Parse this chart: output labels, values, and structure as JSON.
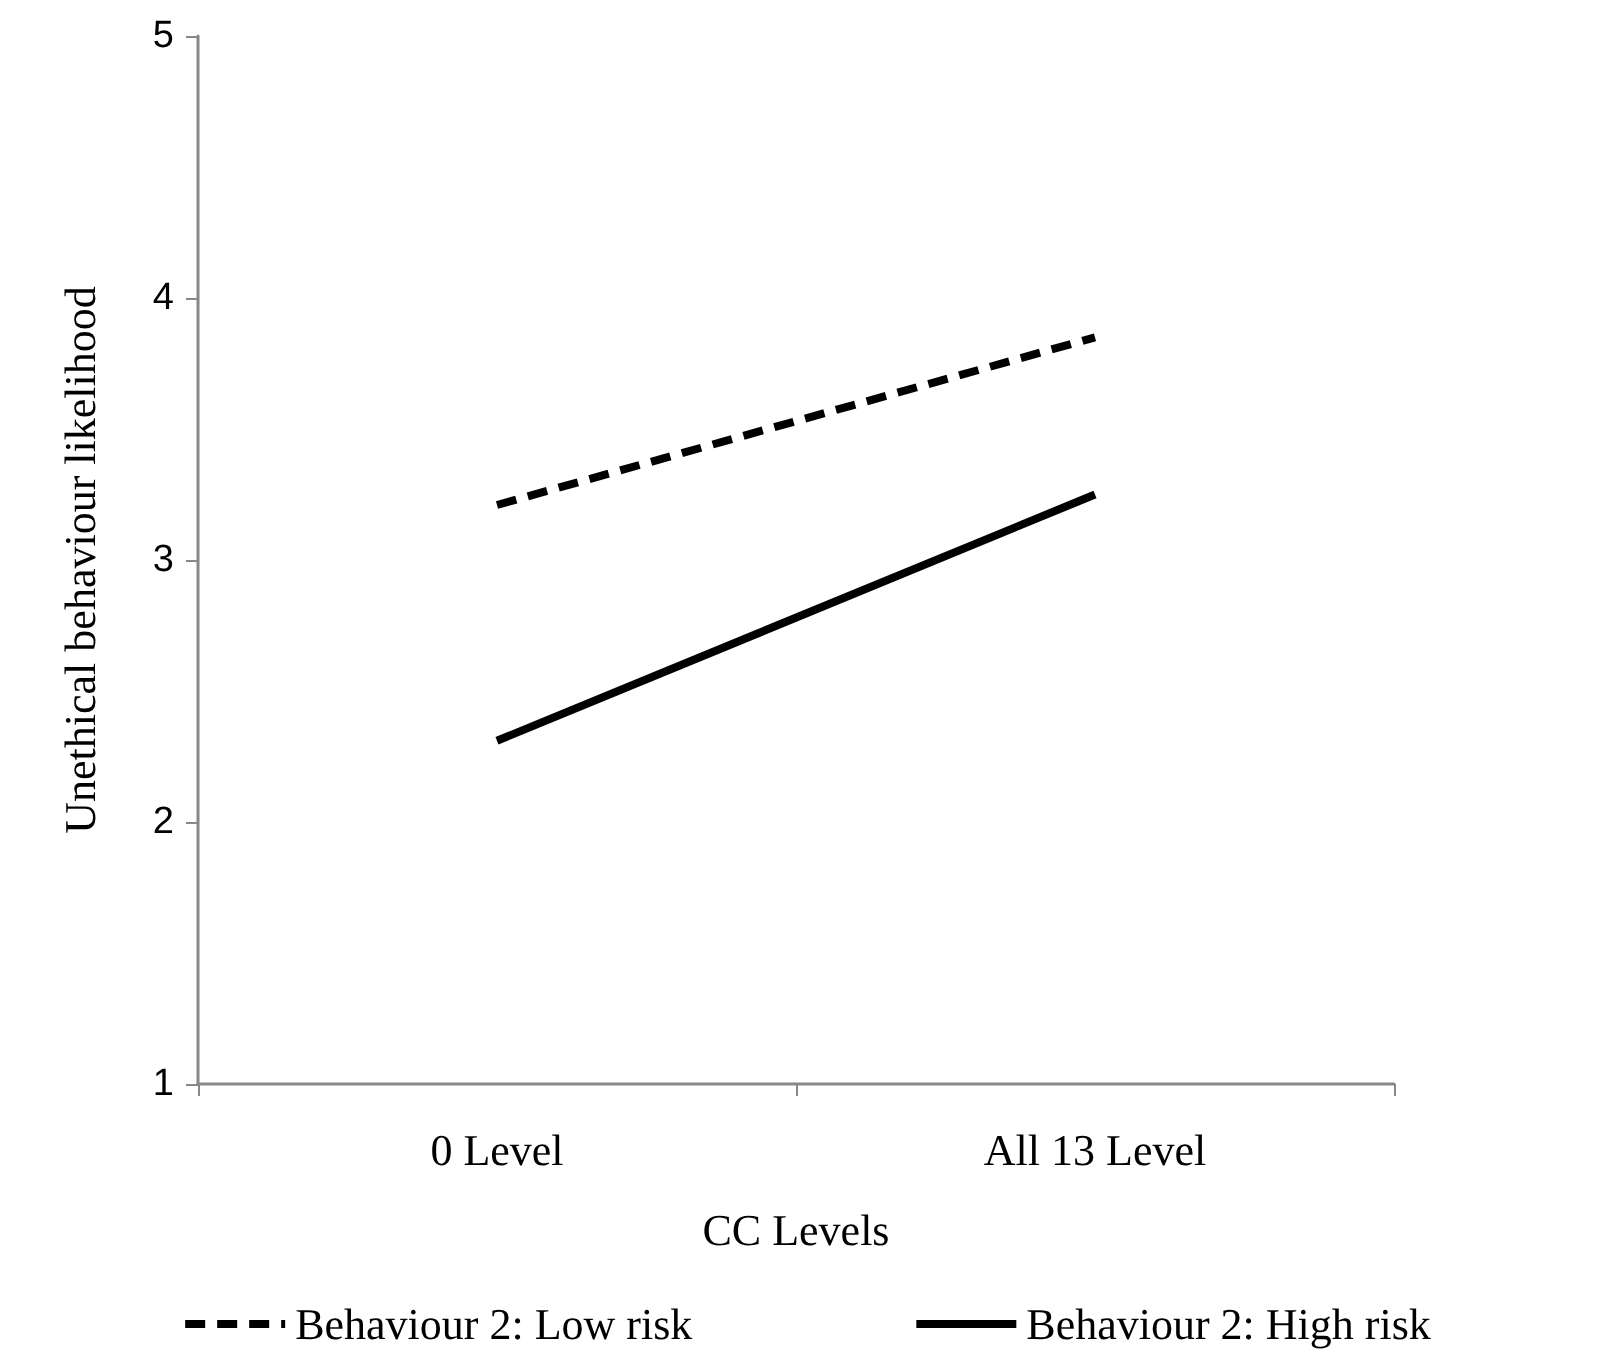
{
  "chart_data": {
    "type": "line",
    "xlabel": "CC Levels",
    "ylabel": "Unethical behaviour likelihood",
    "categories": [
      "0 Level",
      "All 13 Level"
    ],
    "series": [
      {
        "name": "Behaviour 2: Low risk",
        "color": "#000000",
        "values": [
          3.21,
          3.85
        ],
        "line_style": "dashed"
      },
      {
        "name": "Behaviour 2: High risk",
        "color": "#000000",
        "values": [
          2.31,
          3.25
        ],
        "line_style": "solid"
      }
    ],
    "ylim": [
      1,
      5
    ],
    "yticks": [
      1,
      2,
      3,
      4,
      5
    ],
    "grid": false,
    "legend": "bottom",
    "marker": "none"
  }
}
